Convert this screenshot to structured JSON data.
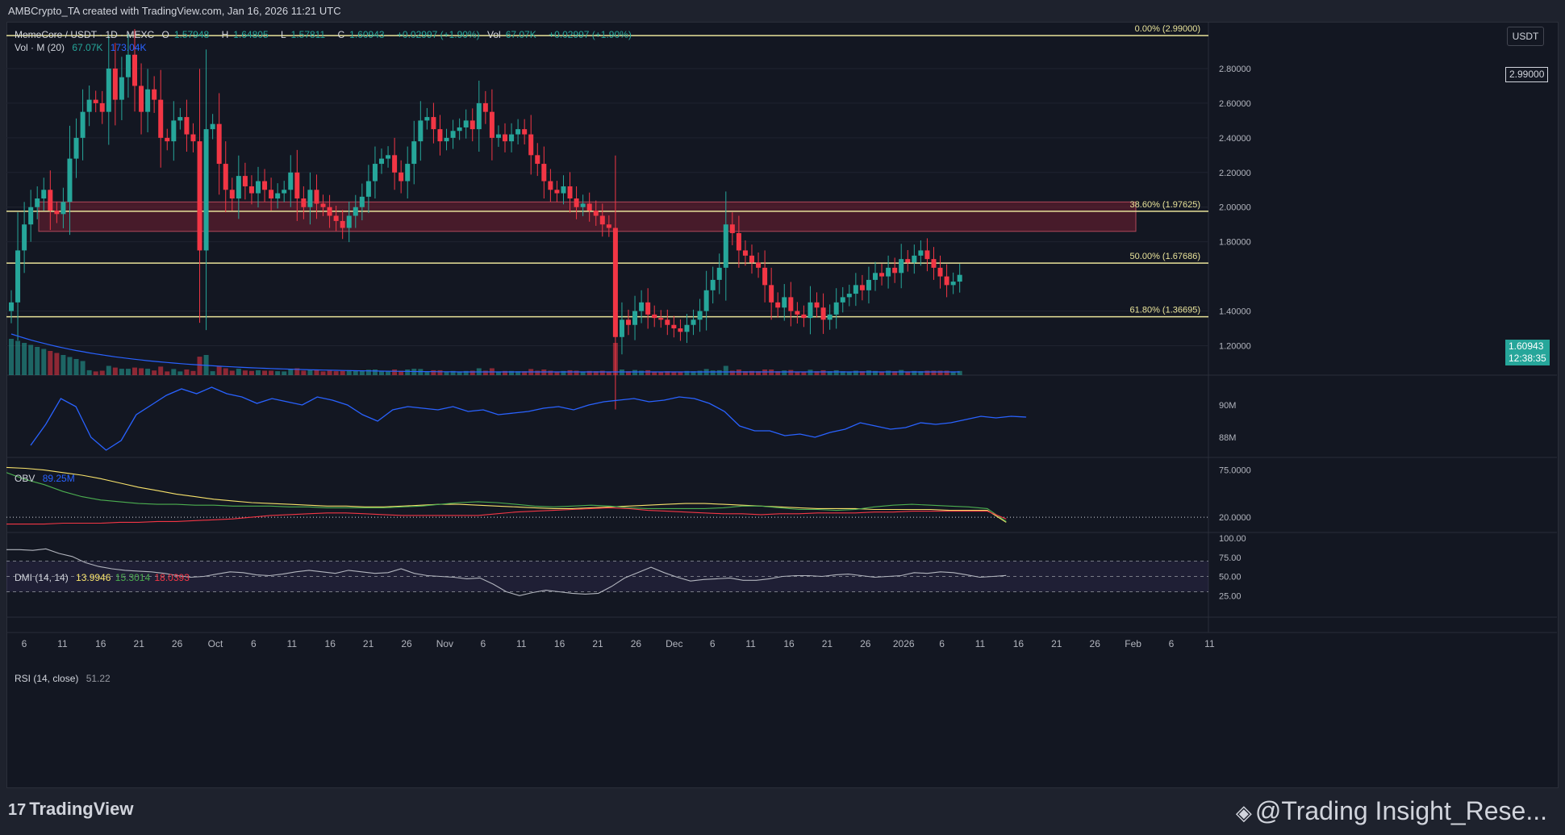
{
  "header": {
    "credit": "AMBCrypto_TA created with TradingView.com, Jan 16, 2026 11:21 UTC",
    "symbol_line": "MemeCore / USDT · 1D · MEXC",
    "open_label": "O",
    "open": "1.57948",
    "high_label": "H",
    "high": "1.64805",
    "low_label": "L",
    "low": "1.57811",
    "close_label": "C",
    "close": "1.60943",
    "change": "+0.02997 (+1.90%)",
    "vol_label": "Vol",
    "vol": "67.07K",
    "vol_change": "+0.02997 (+1.90%)",
    "volma_label": "Vol · M (20)",
    "volma_v1": "67.07K",
    "volma_v2": "173.04K",
    "currency_badge": "USDT"
  },
  "footer": {
    "logo_text": "TradingView",
    "watermark": "@Trading Insight_Rese..."
  },
  "colors": {
    "up": "#26a69a",
    "down": "#f23645",
    "fib": "#e9e39a",
    "obv": "#2962ff",
    "dmi_adx": "#f7e26b",
    "dmi_plus": "#4caf50",
    "dmi_minus": "#f23645",
    "rsi": "#b2b5be",
    "zone": "#5a1e2e"
  },
  "chart_data": [
    {
      "type": "candlestick",
      "title": "MemeCore / USDT · 1D · MEXC",
      "y_ticks": [
        "2.80000",
        "2.60000",
        "2.40000",
        "2.20000",
        "2.00000",
        "1.80000",
        "1.40000",
        "1.20000"
      ],
      "ylim": [
        1.03,
        3.07
      ],
      "x_ticks": [
        "6",
        "11",
        "16",
        "21",
        "26",
        "Oct",
        "6",
        "11",
        "16",
        "21",
        "26",
        "Nov",
        "6",
        "11",
        "16",
        "21",
        "26",
        "Dec",
        "6",
        "11",
        "16",
        "21",
        "26",
        "2026",
        "6",
        "11",
        "16",
        "21",
        "26",
        "Feb",
        "6",
        "11"
      ],
      "fib_levels": [
        {
          "label": "0.00% (2.99000)",
          "value": 2.99
        },
        {
          "label": "38.60% (1.97625)",
          "value": 1.97625
        },
        {
          "label": "50.00% (1.67686)",
          "value": 1.67686
        },
        {
          "label": "61.80% (1.36695)",
          "value": 1.36695
        }
      ],
      "fib_top_tag": "2.99000",
      "supply_zone": [
        1.86,
        2.03
      ],
      "last_price": "1.60943",
      "countdown": "12:38:35",
      "closes": [
        1.45,
        1.75,
        1.9,
        2.0,
        2.05,
        2.1,
        1.98,
        1.96,
        2.03,
        2.28,
        2.4,
        2.55,
        2.62,
        2.6,
        2.55,
        2.8,
        2.62,
        2.75,
        2.88,
        2.7,
        2.55,
        2.68,
        2.62,
        2.4,
        2.38,
        2.5,
        2.52,
        2.42,
        2.38,
        1.75,
        2.45,
        2.48,
        2.25,
        2.1,
        2.05,
        2.18,
        2.12,
        2.08,
        2.15,
        2.1,
        2.05,
        2.08,
        2.1,
        2.2,
        2.05,
        2.0,
        2.1,
        2.02,
        2.0,
        1.95,
        1.92,
        1.88,
        1.95,
        2.0,
        2.06,
        2.15,
        2.25,
        2.28,
        2.3,
        2.2,
        2.15,
        2.25,
        2.38,
        2.5,
        2.52,
        2.45,
        2.38,
        2.4,
        2.44,
        2.46,
        2.5,
        2.45,
        2.6,
        2.55,
        2.4,
        2.42,
        2.38,
        2.42,
        2.45,
        2.42,
        2.3,
        2.25,
        2.15,
        2.1,
        2.08,
        2.12,
        2.05,
        2.0,
        2.02,
        1.98,
        1.95,
        1.9,
        1.88,
        1.25,
        1.35,
        1.32,
        1.4,
        1.45,
        1.38,
        1.36,
        1.35,
        1.32,
        1.3,
        1.28,
        1.32,
        1.35,
        1.4,
        1.52,
        1.58,
        1.65,
        1.9,
        1.85,
        1.75,
        1.72,
        1.68,
        1.65,
        1.55,
        1.45,
        1.42,
        1.48,
        1.4,
        1.38,
        1.36,
        1.45,
        1.42,
        1.35,
        1.38,
        1.45,
        1.48,
        1.5,
        1.55,
        1.52,
        1.58,
        1.62,
        1.6,
        1.65,
        1.62,
        1.7,
        1.68,
        1.72,
        1.75,
        1.7,
        1.65,
        1.6,
        1.55,
        1.57,
        1.609
      ],
      "volume_max": "173.04K"
    },
    {
      "type": "line",
      "title": "OBV",
      "value_label": "89.25M",
      "y_ticks": [
        "90M",
        "88M"
      ],
      "values": [
        87.5,
        88.8,
        90.4,
        89.9,
        88.0,
        87.2,
        87.8,
        89.4,
        90.0,
        90.6,
        91.0,
        90.7,
        91.1,
        90.7,
        90.5,
        90.1,
        90.4,
        90.2,
        90.0,
        90.5,
        90.3,
        90.0,
        89.4,
        89.0,
        89.7,
        89.9,
        89.8,
        89.7,
        89.9,
        89.6,
        89.7,
        89.4,
        89.5,
        89.6,
        89.8,
        89.9,
        89.7,
        90.0,
        90.2,
        90.3,
        90.4,
        90.2,
        90.3,
        90.5,
        90.4,
        90.1,
        89.6,
        88.7,
        88.4,
        88.4,
        88.1,
        88.2,
        88.0,
        88.3,
        88.5,
        88.9,
        88.7,
        88.5,
        88.6,
        88.9,
        88.8,
        88.9,
        89.1,
        89.3,
        89.2,
        89.3,
        89.25
      ]
    },
    {
      "type": "line",
      "title": "DMI (14, 14)",
      "series": [
        {
          "name": "13.9946",
          "values": [
            78,
            77,
            75,
            72,
            69,
            65,
            60,
            55,
            51,
            47,
            44,
            41,
            39,
            37,
            36,
            35,
            34,
            33,
            33,
            32,
            32,
            33,
            34,
            35,
            35,
            34,
            33,
            32,
            31,
            30,
            30,
            31,
            32,
            33,
            34,
            35,
            36,
            36,
            35,
            34,
            33,
            32,
            31,
            30,
            30,
            30,
            29,
            29,
            29,
            29,
            28,
            28,
            28,
            14
          ]
        },
        {
          "name": "15.3014",
          "values": [
            72,
            64,
            58,
            50,
            44,
            40,
            38,
            36,
            35,
            35,
            34,
            34,
            33,
            33,
            33,
            32,
            32,
            31,
            31,
            31,
            31,
            32,
            33,
            35,
            37,
            38,
            37,
            35,
            33,
            32,
            33,
            34,
            33,
            31,
            30,
            30,
            30,
            30,
            31,
            33,
            33,
            31,
            29,
            29,
            28,
            29,
            32,
            34,
            35,
            34,
            33,
            32,
            30,
            15
          ]
        },
        {
          "name": "18.0393",
          "values": [
            12,
            12,
            12,
            13,
            13,
            13,
            14,
            14,
            15,
            15,
            16,
            17,
            18,
            20,
            22,
            23,
            24,
            25,
            25,
            24,
            23,
            22,
            22,
            22,
            22,
            22,
            24,
            26,
            27,
            28,
            29,
            30,
            31,
            30,
            28,
            27,
            26,
            25,
            24,
            24,
            23,
            24,
            24,
            25,
            25,
            25,
            26,
            26,
            27,
            27,
            27,
            27,
            27,
            18
          ]
        }
      ],
      "y_ticks": [
        "75.0000",
        "20.0000"
      ]
    },
    {
      "type": "line",
      "title": "RSI (14, close)",
      "value_label": "51.22",
      "y_ticks": [
        "100.00",
        "75.00",
        "50.00",
        "25.00"
      ],
      "values": [
        85,
        85,
        84,
        86,
        80,
        76,
        68,
        63,
        60,
        58,
        57,
        56,
        54,
        51,
        49,
        50,
        53,
        56,
        55,
        52,
        51,
        53,
        56,
        58,
        56,
        54,
        58,
        56,
        54,
        55,
        60,
        54,
        51,
        50,
        49,
        47,
        48,
        40,
        30,
        25,
        29,
        32,
        30,
        28,
        27,
        28,
        37,
        48,
        55,
        62,
        55,
        49,
        44,
        46,
        47,
        48,
        45,
        45,
        47,
        50,
        51,
        51,
        50,
        52,
        53,
        51,
        49,
        50,
        51,
        55,
        54,
        56,
        55,
        52,
        49,
        50,
        51.22
      ]
    }
  ]
}
